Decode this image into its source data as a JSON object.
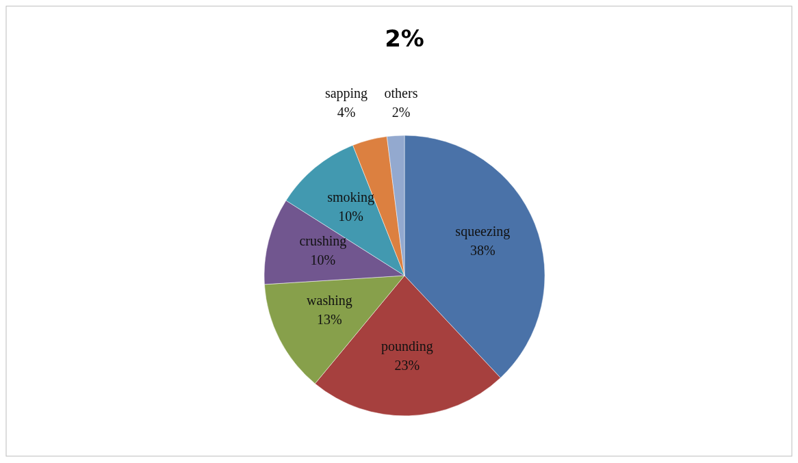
{
  "chart_data": {
    "type": "pie",
    "title": "2%",
    "categories": [
      "squeezing",
      "pounding",
      "washing",
      "crushing",
      "smoking",
      "sapping",
      "others"
    ],
    "values": [
      38,
      23,
      13,
      10,
      10,
      4,
      2
    ],
    "value_labels": [
      "38%",
      "23%",
      "13%",
      "10%",
      "10%",
      "4%",
      "2%"
    ],
    "colors": [
      "#4a72a8",
      "#a6403e",
      "#87a04b",
      "#71568f",
      "#4299b0",
      "#dc8040",
      "#93a9cf"
    ]
  }
}
